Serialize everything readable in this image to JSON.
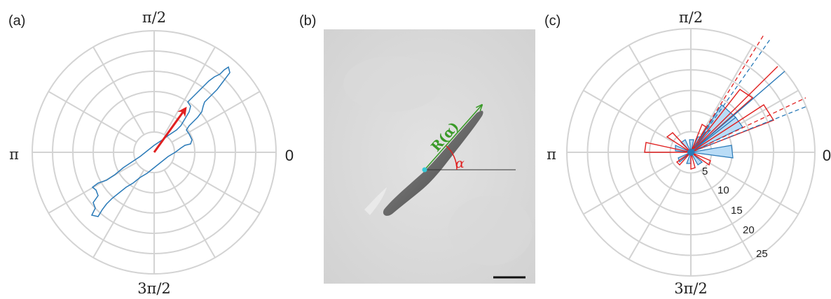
{
  "panels": [
    {
      "label": "(a)",
      "angle_labels": {
        "top": "π/2",
        "left": "π",
        "right": "0",
        "bottom": "3π/2"
      }
    },
    {
      "label": "(b)",
      "vector_label": "R(α)",
      "angle_symbol": "α"
    },
    {
      "label": "(c)",
      "angle_labels": {
        "top": "π/2",
        "left": "π",
        "right": "0",
        "bottom": "3π/2"
      },
      "radial_ticks": [
        "5",
        "10",
        "15",
        "20",
        "25"
      ]
    }
  ],
  "colors": {
    "grid": "#d3d3d3",
    "cell_outline": "#2a7ab8",
    "arrow": "#e02020",
    "vector": "#3a9a28",
    "angle": "#e02020",
    "rose_fill": "#b9dcf6",
    "rose_blue": "#2a7ab8",
    "rose_red": "#e02020",
    "marker": "#35c9d8"
  }
}
